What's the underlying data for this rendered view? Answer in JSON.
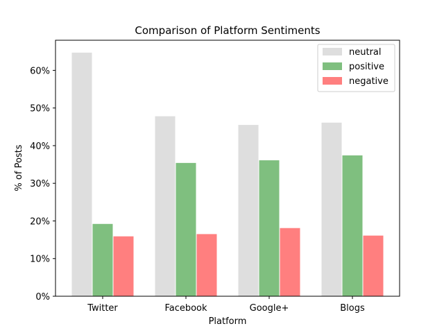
{
  "chart_data": {
    "type": "bar",
    "title": "Comparison of Platform Sentiments",
    "xlabel": "Platform",
    "ylabel": "% of Posts",
    "categories": [
      "Twitter",
      "Facebook",
      "Google+",
      "Blogs"
    ],
    "series": [
      {
        "name": "neutral",
        "values": [
          64.8,
          47.9,
          45.6,
          46.2
        ]
      },
      {
        "name": "positive",
        "values": [
          19.3,
          35.5,
          36.2,
          37.5
        ]
      },
      {
        "name": "negative",
        "values": [
          16.0,
          16.6,
          18.2,
          16.2
        ]
      }
    ],
    "ylim": [
      0,
      68
    ],
    "yticks": [
      0,
      10,
      20,
      30,
      40,
      50,
      60
    ],
    "ytick_labels": [
      "0%",
      "10%",
      "20%",
      "30%",
      "40%",
      "50%",
      "60%"
    ],
    "colors": {
      "neutral": "#dedede",
      "positive": "#7fbf7f",
      "negative": "#ff7f7f"
    },
    "legend_position": "top-right",
    "grid": false
  }
}
